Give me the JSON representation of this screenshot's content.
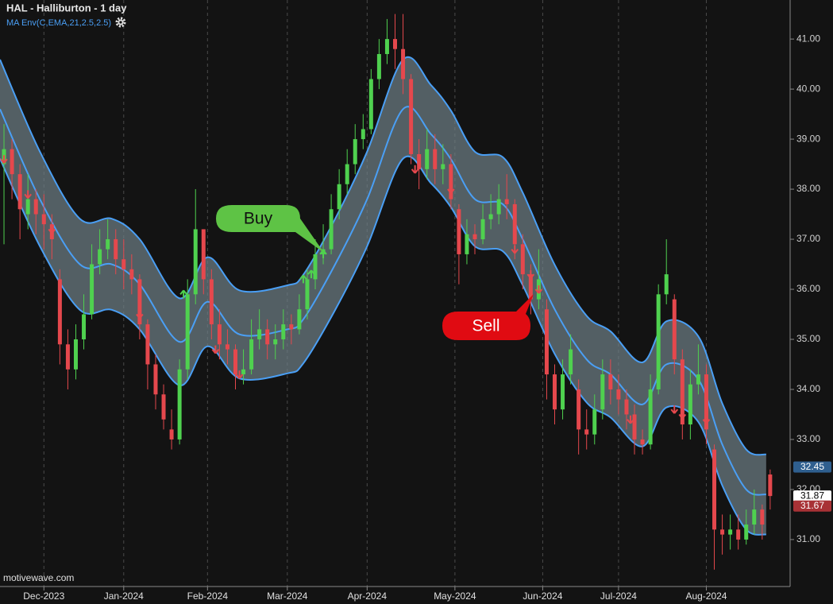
{
  "chart_data": {
    "type": "candlestick",
    "title": "HAL - Halliburton - 1 day",
    "subtitle": "MA Env(C,EMA,21,2.5,2.5)",
    "watermark": "motivewave.com",
    "annotations": [
      "Buy",
      "Sell"
    ],
    "up_color": "#4fd14f",
    "down_color": "#e5484d",
    "band_color": "#4a9ff5",
    "grid": true,
    "xlim": [
      -11,
      187
    ],
    "ylim": [
      30.03,
      41.78
    ],
    "xticks": [
      {
        "value": 0,
        "label": "Dec-2023"
      },
      {
        "value": 20,
        "label": "Jan-2024"
      },
      {
        "value": 41,
        "label": "Feb-2024"
      },
      {
        "value": 61,
        "label": "Mar-2024"
      },
      {
        "value": 81,
        "label": "Apr-2024"
      },
      {
        "value": 103,
        "label": "May-2024"
      },
      {
        "value": 125,
        "label": "Jun-2024"
      },
      {
        "value": 144,
        "label": "Jul-2024"
      },
      {
        "value": 166,
        "label": "Aug-2024"
      }
    ],
    "yticks": [
      {
        "value": 31,
        "label": "31.00"
      },
      {
        "value": 32,
        "label": "32.00"
      },
      {
        "value": 33,
        "label": "33.00"
      },
      {
        "value": 34,
        "label": "34.00"
      },
      {
        "value": 35,
        "label": "35.00"
      },
      {
        "value": 36,
        "label": "36.00"
      },
      {
        "value": 37,
        "label": "37.00"
      },
      {
        "value": 38,
        "label": "38.00"
      },
      {
        "value": 39,
        "label": "39.00"
      },
      {
        "value": 40,
        "label": "40.00"
      },
      {
        "value": 41,
        "label": "41.00"
      }
    ],
    "x": [
      -10,
      -8,
      -6,
      -4,
      -2,
      0,
      2,
      4,
      6,
      8,
      10,
      12,
      14,
      16,
      18,
      20,
      22,
      24,
      26,
      28,
      30,
      32,
      34,
      36,
      38,
      40,
      42,
      44,
      46,
      48,
      50,
      52,
      54,
      56,
      58,
      60,
      62,
      64,
      66,
      68,
      70,
      72,
      74,
      76,
      78,
      80,
      82,
      84,
      86,
      88,
      90,
      92,
      94,
      96,
      98,
      100,
      102,
      104,
      106,
      108,
      110,
      112,
      114,
      116,
      118,
      120,
      122,
      124,
      126,
      128,
      130,
      132,
      134,
      136,
      138,
      140,
      142,
      144,
      146,
      148,
      150,
      152,
      154,
      156,
      158,
      160,
      162,
      164,
      166,
      168,
      170,
      172,
      174,
      176,
      178,
      180,
      182
    ],
    "open": [
      38.5,
      38.8,
      38.3,
      37.5,
      37.8,
      37.5,
      37.3,
      36.2,
      34.9,
      34.4,
      35.0,
      35.5,
      36.5,
      36.8,
      37.0,
      36.6,
      36.4,
      36.2,
      35.3,
      34.5,
      33.9,
      33.2,
      33.0,
      34.4,
      35.9,
      37.2,
      36.2,
      35.3,
      34.9,
      34.8,
      34.3,
      34.4,
      35.0,
      35.2,
      34.9,
      35.0,
      35.3,
      35.2,
      35.6,
      36.2,
      36.7,
      36.8,
      37.6,
      38.1,
      38.5,
      39.0,
      39.2,
      40.2,
      40.7,
      41.0,
      40.8,
      40.2,
      38.7,
      38.4,
      38.8,
      38.4,
      38.5,
      37.6,
      36.7,
      37.1,
      37.0,
      37.4,
      37.5,
      37.8,
      37.7,
      36.9,
      36.3,
      35.8,
      35.6,
      34.3,
      33.6,
      34.3,
      34.0,
      33.2,
      33.1,
      33.6,
      34.3,
      34.0,
      33.8,
      33.5,
      33.0,
      32.9,
      34.0,
      35.9,
      35.8,
      34.6,
      33.3,
      34.1,
      34.3,
      32.8,
      31.2,
      31.1,
      31.2,
      31.0,
      31.3,
      31.6,
      32.3
    ],
    "high": [
      39.3,
      39.0,
      38.5,
      38.3,
      38.0,
      37.9,
      37.5,
      36.4,
      35.2,
      35.3,
      35.9,
      36.9,
      37.2,
      37.4,
      37.2,
      37.0,
      36.7,
      36.3,
      35.4,
      34.7,
      34.1,
      33.6,
      34.6,
      36.2,
      38.0,
      37.2,
      36.4,
      35.6,
      35.2,
      34.9,
      34.8,
      35.4,
      35.6,
      35.4,
      35.3,
      35.6,
      35.5,
      35.9,
      36.4,
      37.0,
      37.3,
      37.9,
      38.4,
      38.8,
      39.3,
      39.5,
      40.4,
      41.0,
      41.4,
      41.5,
      41.5,
      40.3,
      39.0,
      39.2,
      39.1,
      38.9,
      38.7,
      37.7,
      37.4,
      37.3,
      37.7,
      37.9,
      38.1,
      38.3,
      37.8,
      37.1,
      36.5,
      36.8,
      35.8,
      34.5,
      34.6,
      35.1,
      34.2,
      33.6,
      33.9,
      34.6,
      34.6,
      34.3,
      34.0,
      33.7,
      33.2,
      34.3,
      36.1,
      37.0,
      35.9,
      34.8,
      34.4,
      34.9,
      34.5,
      32.9,
      31.5,
      31.5,
      31.5,
      31.6,
      32.0,
      31.7,
      32.4
    ],
    "low": [
      36.9,
      37.8,
      37.0,
      37.2,
      37.1,
      36.8,
      36.6,
      34.5,
      34.0,
      34.2,
      34.8,
      35.4,
      36.3,
      36.6,
      36.3,
      36.0,
      35.9,
      35.0,
      34.0,
      33.6,
      33.2,
      32.8,
      32.9,
      34.2,
      35.7,
      35.9,
      35.0,
      34.6,
      34.5,
      34.0,
      34.1,
      34.3,
      34.8,
      34.6,
      34.6,
      34.8,
      34.9,
      35.1,
      35.4,
      36.0,
      36.5,
      36.7,
      37.4,
      37.9,
      38.3,
      38.8,
      39.1,
      40.0,
      40.5,
      40.4,
      39.9,
      38.5,
      38.0,
      38.2,
      38.1,
      38.1,
      37.6,
      36.1,
      36.5,
      36.7,
      36.9,
      37.2,
      37.3,
      37.4,
      36.6,
      36.0,
      35.5,
      35.6,
      33.8,
      33.3,
      33.4,
      34.1,
      32.7,
      32.8,
      32.9,
      33.4,
      33.7,
      33.5,
      33.2,
      32.7,
      32.7,
      32.8,
      33.9,
      35.7,
      34.3,
      33.0,
      33.0,
      33.9,
      32.9,
      30.4,
      30.7,
      30.8,
      30.8,
      30.9,
      31.1,
      31.0,
      31.6
    ],
    "close": [
      38.8,
      38.3,
      37.6,
      37.8,
      37.5,
      37.3,
      37.0,
      34.9,
      34.4,
      35.0,
      35.5,
      36.5,
      36.8,
      37.0,
      36.6,
      36.4,
      36.2,
      35.3,
      34.5,
      33.9,
      33.4,
      33.0,
      34.4,
      35.9,
      37.2,
      36.2,
      35.3,
      34.9,
      34.8,
      34.3,
      34.4,
      35.0,
      35.2,
      34.9,
      35.0,
      35.3,
      35.2,
      35.6,
      36.2,
      36.7,
      36.8,
      37.6,
      38.1,
      38.5,
      39.0,
      39.2,
      40.2,
      40.7,
      41.0,
      40.8,
      40.2,
      38.7,
      38.4,
      38.8,
      38.4,
      38.5,
      37.8,
      36.7,
      37.1,
      37.0,
      37.4,
      37.5,
      37.8,
      37.7,
      36.9,
      36.3,
      35.8,
      36.2,
      34.3,
      33.6,
      34.3,
      34.8,
      33.2,
      33.1,
      33.6,
      34.3,
      34.0,
      33.8,
      33.5,
      33.0,
      32.9,
      34.0,
      35.9,
      36.3,
      34.6,
      33.3,
      34.1,
      34.3,
      33.2,
      31.2,
      31.1,
      31.2,
      31.0,
      31.3,
      31.6,
      31.3,
      31.87
    ],
    "bands": {
      "x": [
        -11,
        -1,
        9,
        17,
        24,
        34,
        41,
        49,
        61,
        65,
        73,
        81,
        90,
        97,
        102,
        108,
        115,
        120,
        128,
        136,
        142,
        150,
        156,
        164,
        170,
        176,
        181
      ],
      "upper": [
        40.59,
        38.75,
        37.41,
        37.41,
        37.0,
        35.82,
        36.64,
        35.98,
        36.08,
        36.29,
        37.41,
        38.75,
        40.59,
        40.08,
        39.57,
        38.75,
        38.64,
        37.93,
        36.49,
        35.47,
        35.16,
        34.54,
        35.36,
        35.06,
        33.72,
        32.8,
        32.7
      ],
      "middle": [
        39.6,
        37.8,
        36.5,
        36.5,
        36.1,
        34.95,
        35.75,
        35.1,
        35.2,
        35.4,
        36.5,
        37.8,
        39.6,
        39.1,
        38.6,
        37.8,
        37.7,
        37.0,
        35.6,
        34.6,
        34.3,
        33.7,
        34.5,
        34.2,
        32.9,
        32.0,
        31.9
      ],
      "lower": [
        38.61,
        36.86,
        35.59,
        35.59,
        35.2,
        34.08,
        34.86,
        34.22,
        34.32,
        34.52,
        35.59,
        36.86,
        38.61,
        38.12,
        37.64,
        36.86,
        36.76,
        36.08,
        34.71,
        33.74,
        33.44,
        32.86,
        33.64,
        33.35,
        32.08,
        31.2,
        31.1
      ]
    },
    "buy_signals": {
      "x": [
        35,
        65,
        67,
        70
      ],
      "y": [
        35.9,
        36.2,
        36.3,
        36.7
      ]
    },
    "sell_signals": {
      "x": [
        -10,
        -4,
        2,
        24,
        43,
        49,
        93,
        102,
        118,
        122,
        124,
        147,
        158,
        160,
        166
      ],
      "y": [
        38.6,
        37.9,
        37.2,
        35.5,
        34.8,
        34.3,
        38.4,
        38.0,
        36.8,
        36.3,
        36.0,
        33.4,
        33.6,
        33.5,
        33.4
      ]
    },
    "price_labels": [
      {
        "value": 32.45,
        "color": "#2f5f8f",
        "text_color": "#ffffff"
      },
      {
        "value": 31.87,
        "color": "#ffffff",
        "text_color": "#000000"
      },
      {
        "value": 31.67,
        "color": "#a83236",
        "text_color": "#ffffff"
      }
    ]
  }
}
